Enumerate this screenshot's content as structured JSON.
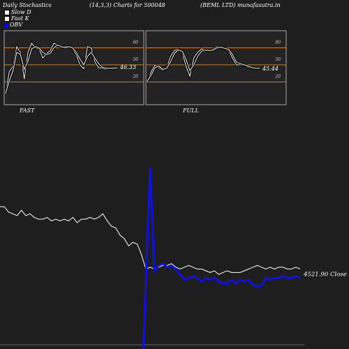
{
  "header": {
    "title": "Daily Stochastics",
    "params": "(14,3,3) Charts for 500048",
    "company": "(BEML LTD) munafasutra.in"
  },
  "legend": [
    {
      "label": "Slow  D",
      "color": "#ffffff"
    },
    {
      "label": "Fast K",
      "color": "#ffffff"
    },
    {
      "label": "OBV",
      "color": "#0000ff"
    }
  ],
  "colors": {
    "level_line": "#c8821e",
    "obv": "#1010e0",
    "price": "#ffffff",
    "panel_border": "#aaaaaa"
  },
  "chart_data": [
    {
      "type": "line",
      "name_label": "FAST",
      "levels": [
        80,
        50,
        20
      ],
      "level_labels": [
        "80",
        "50",
        "20"
      ],
      "ylim": [
        -20,
        110
      ],
      "last_value_label": "46.33",
      "series": [
        {
          "name": "Fast K",
          "values": [
            0,
            38,
            48,
            82,
            72,
            25,
            72,
            88,
            80,
            78,
            62,
            70,
            75,
            88,
            85,
            80,
            82,
            83,
            78,
            68,
            50,
            43,
            82,
            80,
            55,
            45,
            44,
            42,
            45,
            44,
            46
          ]
        },
        {
          "name": "Slow  D",
          "values": [
            0,
            22,
            40,
            72,
            68,
            42,
            56,
            78,
            82,
            80,
            72,
            68,
            70,
            80,
            85,
            82,
            80,
            82,
            80,
            72,
            60,
            50,
            65,
            72,
            62,
            52,
            46,
            44,
            44,
            44,
            45
          ]
        }
      ]
    },
    {
      "type": "line",
      "name_label": "FULL",
      "levels": [
        80,
        50,
        20
      ],
      "level_labels": [
        "80",
        "50",
        "20"
      ],
      "ylim": [
        -20,
        110
      ],
      "last_value_label": "45.44",
      "series": [
        {
          "name": "Fast K",
          "values": [
            20,
            38,
            50,
            45,
            40,
            45,
            65,
            75,
            78,
            72,
            48,
            30,
            62,
            72,
            78,
            76,
            74,
            78,
            82,
            80,
            78,
            75,
            62,
            50,
            50,
            49,
            46,
            44,
            43,
            44
          ]
        },
        {
          "name": "Slow  D",
          "values": [
            22,
            32,
            45,
            48,
            42,
            44,
            55,
            70,
            76,
            74,
            60,
            40,
            50,
            65,
            74,
            76,
            75,
            76,
            80,
            81,
            79,
            77,
            68,
            55,
            52,
            50,
            48,
            45,
            44,
            44
          ]
        }
      ]
    },
    {
      "type": "line",
      "last_value_label": "4521.90",
      "close_label": "Close",
      "ylim": [
        0,
        100
      ],
      "series": [
        {
          "name": "Price",
          "values": [
            78,
            78,
            75,
            74,
            73,
            76,
            73,
            74,
            72,
            71,
            71,
            72,
            70,
            71,
            70,
            71,
            70,
            72,
            69,
            71,
            71,
            72,
            71,
            72,
            74,
            70,
            67,
            66,
            62,
            60,
            56,
            58,
            57,
            51,
            43,
            44,
            43,
            44,
            45,
            45,
            46,
            44,
            43,
            44,
            45,
            44,
            43,
            43,
            42,
            41,
            42,
            40,
            41,
            42,
            41,
            41,
            41,
            42,
            43,
            44,
            45,
            44,
            43,
            44,
            43,
            44,
            44,
            43,
            43,
            44,
            43
          ]
        },
        {
          "name": "OBV",
          "values": [
            null,
            null,
            null,
            null,
            null,
            null,
            null,
            null,
            null,
            null,
            null,
            null,
            null,
            null,
            null,
            null,
            null,
            null,
            null,
            null,
            null,
            null,
            null,
            null,
            null,
            null,
            null,
            null,
            null,
            null,
            null,
            null,
            null,
            null,
            null,
            100,
            42,
            45,
            46,
            44,
            45,
            43,
            40,
            37,
            38,
            39,
            38,
            36,
            38,
            37,
            38,
            36,
            35,
            35,
            37,
            35,
            37,
            36,
            37,
            34,
            33,
            34,
            38,
            37,
            38,
            38,
            39,
            38,
            38,
            39,
            38
          ]
        }
      ]
    }
  ]
}
